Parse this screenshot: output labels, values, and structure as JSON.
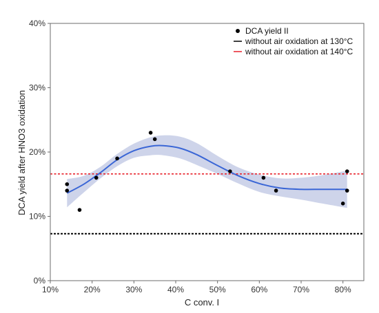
{
  "chart_data": {
    "type": "scatter",
    "title": "",
    "xlabel": "C conv. I",
    "ylabel": "DCA yield after HNO3 oxidation",
    "xlim": [
      10,
      85
    ],
    "ylim": [
      0,
      40
    ],
    "x_ticks": [
      10,
      20,
      30,
      40,
      50,
      60,
      70,
      80
    ],
    "y_ticks": [
      0,
      10,
      20,
      30,
      40
    ],
    "x_tick_labels": [
      "10%",
      "20%",
      "30%",
      "40%",
      "50%",
      "60%",
      "70%",
      "80%"
    ],
    "y_tick_labels": [
      "0%",
      "10%",
      "20%",
      "30%",
      "40%"
    ],
    "grid": false,
    "legend_position": "top-right",
    "series": [
      {
        "name": "DCA yield II",
        "kind": "scatter",
        "color": "#000000",
        "points": [
          {
            "x": 14,
            "y": 15
          },
          {
            "x": 14,
            "y": 14
          },
          {
            "x": 17,
            "y": 11
          },
          {
            "x": 21,
            "y": 16
          },
          {
            "x": 26,
            "y": 19
          },
          {
            "x": 34,
            "y": 23
          },
          {
            "x": 35,
            "y": 22
          },
          {
            "x": 53,
            "y": 17
          },
          {
            "x": 61,
            "y": 16
          },
          {
            "x": 64,
            "y": 14
          },
          {
            "x": 80,
            "y": 12
          },
          {
            "x": 81,
            "y": 17
          },
          {
            "x": 81,
            "y": 14
          }
        ]
      },
      {
        "name": "without air oxidation at 130°C",
        "kind": "hline",
        "color": "#000000",
        "y": 7.3
      },
      {
        "name": "without air oxidation at 140°C",
        "kind": "hline",
        "color": "#e8202a",
        "y": 16.6
      }
    ],
    "smooth_fit": {
      "color": "#3a66d6",
      "band_color": "#c5cde6",
      "points": [
        {
          "x": 14,
          "y": 13.6,
          "lo": 11.4,
          "hi": 15.8
        },
        {
          "x": 18,
          "y": 15.0,
          "lo": 13.7,
          "hi": 16.3
        },
        {
          "x": 22,
          "y": 16.8,
          "lo": 15.9,
          "hi": 17.7
        },
        {
          "x": 26,
          "y": 18.8,
          "lo": 17.8,
          "hi": 19.7
        },
        {
          "x": 30,
          "y": 20.2,
          "lo": 19.1,
          "hi": 21.3
        },
        {
          "x": 34,
          "y": 20.9,
          "lo": 19.5,
          "hi": 22.3
        },
        {
          "x": 37,
          "y": 21.0,
          "lo": 19.5,
          "hi": 22.6
        },
        {
          "x": 41,
          "y": 20.6,
          "lo": 19.0,
          "hi": 22.4
        },
        {
          "x": 45,
          "y": 19.6,
          "lo": 18.0,
          "hi": 21.4
        },
        {
          "x": 50,
          "y": 17.9,
          "lo": 16.6,
          "hi": 19.4
        },
        {
          "x": 55,
          "y": 16.3,
          "lo": 15.1,
          "hi": 17.6
        },
        {
          "x": 60,
          "y": 15.1,
          "lo": 13.8,
          "hi": 16.5
        },
        {
          "x": 65,
          "y": 14.4,
          "lo": 13.1,
          "hi": 15.9
        },
        {
          "x": 70,
          "y": 14.2,
          "lo": 12.6,
          "hi": 16.0
        },
        {
          "x": 75,
          "y": 14.2,
          "lo": 12.0,
          "hi": 16.4
        },
        {
          "x": 81,
          "y": 14.2,
          "lo": 11.3,
          "hi": 17.1
        }
      ]
    }
  }
}
